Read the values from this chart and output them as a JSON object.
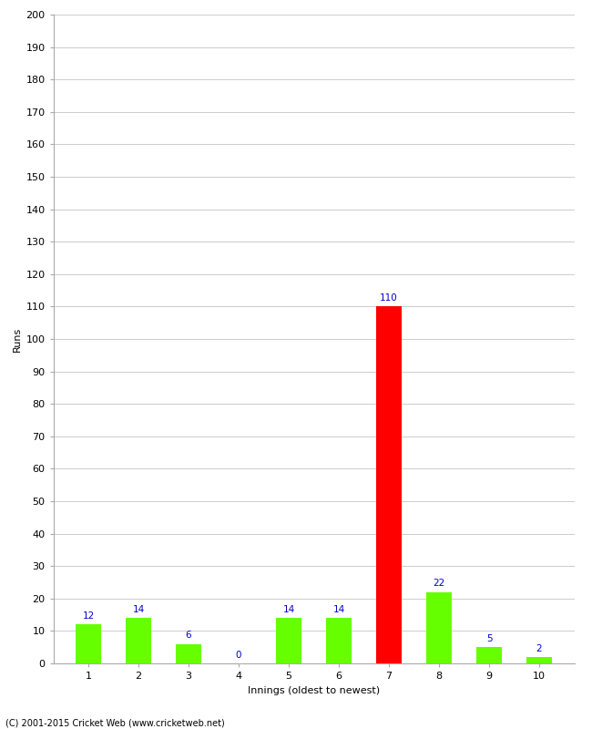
{
  "categories": [
    "1",
    "2",
    "3",
    "4",
    "5",
    "6",
    "7",
    "8",
    "9",
    "10"
  ],
  "values": [
    12,
    14,
    6,
    0,
    14,
    14,
    110,
    22,
    5,
    2
  ],
  "bar_colors": [
    "#66ff00",
    "#66ff00",
    "#66ff00",
    "#66ff00",
    "#66ff00",
    "#66ff00",
    "#ff0000",
    "#66ff00",
    "#66ff00",
    "#66ff00"
  ],
  "xlabel": "Innings (oldest to newest)",
  "ylabel": "Runs",
  "ylim": [
    0,
    200
  ],
  "yticks": [
    0,
    10,
    20,
    30,
    40,
    50,
    60,
    70,
    80,
    90,
    100,
    110,
    120,
    130,
    140,
    150,
    160,
    170,
    180,
    190,
    200
  ],
  "label_color": "#0000cc",
  "label_fontsize": 7.5,
  "axis_fontsize": 8,
  "tick_fontsize": 8,
  "footer": "(C) 2001-2015 Cricket Web (www.cricketweb.net)",
  "background_color": "#ffffff",
  "grid_color": "#cccccc",
  "bar_width": 0.5
}
